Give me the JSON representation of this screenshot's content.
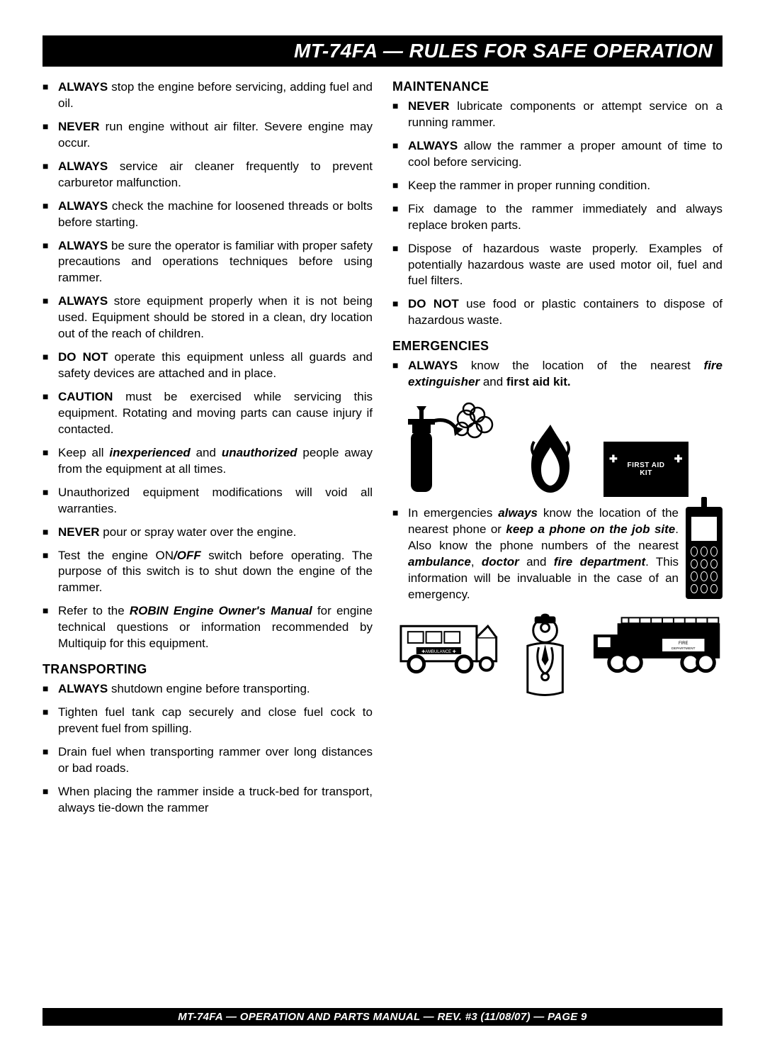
{
  "title": "MT-74FA — RULES FOR SAFE OPERATION",
  "footer": "MT-74FA — OPERATION AND PARTS MANUAL — REV. #3 (11/08/07) — PAGE 9",
  "left": {
    "items": [
      [
        {
          "t": "ALWAYS",
          "c": "b"
        },
        {
          "t": " stop the engine before servicing, adding fuel and oil."
        }
      ],
      [
        {
          "t": "NEVER",
          "c": "b"
        },
        {
          "t": "  run engine without air filter.  Severe engine may occur."
        }
      ],
      [
        {
          "t": "ALWAYS",
          "c": "b"
        },
        {
          "t": " service air cleaner frequently to prevent carburetor malfunction."
        }
      ],
      [
        {
          "t": "ALWAYS",
          "c": "b"
        },
        {
          "t": " check the machine for loosened threads or bolts before starting."
        }
      ],
      [
        {
          "t": "ALWAYS",
          "c": "b"
        },
        {
          "t": " be sure the operator is familiar with proper safety precautions and operations techniques before using rammer."
        }
      ],
      [
        {
          "t": "ALWAYS",
          "c": "b"
        },
        {
          "t": " store equipment properly when it is not being used. Equipment should be stored in a clean, dry location out of the reach of children."
        }
      ],
      [
        {
          "t": "DO NOT",
          "c": "b"
        },
        {
          "t": " operate this equipment unless all guards and safety devices are attached and in place."
        }
      ],
      [
        {
          "t": "CAUTION",
          "c": "b"
        },
        {
          "t": " must be exercised while servicing this equipment. Rotating and moving parts can cause injury if contacted."
        }
      ],
      [
        {
          "t": "Keep all "
        },
        {
          "t": "inexperienced",
          "c": "bi"
        },
        {
          "t": " and "
        },
        {
          "t": "unauthorized",
          "c": "bi"
        },
        {
          "t": " people away from the equipment at all times."
        }
      ],
      [
        {
          "t": "Unauthorized equipment modifications will void all warranties."
        }
      ],
      [
        {
          "t": "NEVER",
          "c": "b"
        },
        {
          "t": " pour or spray water over the engine."
        }
      ],
      [
        {
          "t": "Test the engine ON"
        },
        {
          "t": "/OFF",
          "c": "bi"
        },
        {
          "t": " switch before operating. The purpose of this switch is to shut down the engine of the rammer."
        }
      ],
      [
        {
          "t": "Refer to the "
        },
        {
          "t": "ROBIN Engine Owner's Manual",
          "c": "bi"
        },
        {
          "t": " for engine technical questions or information recommended by Multiquip for this equipment."
        }
      ]
    ],
    "transporting_head": "TRANSPORTING",
    "transporting": [
      [
        {
          "t": "ALWAYS",
          "c": "b"
        },
        {
          "t": " shutdown engine before transporting."
        }
      ],
      [
        {
          "t": "Tighten fuel tank cap securely and close fuel cock to prevent fuel from spilling."
        }
      ],
      [
        {
          "t": "Drain fuel when transporting rammer over long distances or bad roads."
        }
      ],
      [
        {
          "t": "When  placing the rammer inside a truck-bed for transport, always tie-down the rammer"
        }
      ]
    ]
  },
  "right": {
    "maintenance_head": "MAINTENANCE",
    "maintenance": [
      [
        {
          "t": "NEVER",
          "c": "b"
        },
        {
          "t": " lubricate components or attempt service on a running rammer."
        }
      ],
      [
        {
          "t": "ALWAYS",
          "c": "b"
        },
        {
          "t": "  allow the rammer a proper amount of time to cool before servicing."
        }
      ],
      [
        {
          "t": "Keep the rammer in proper running condition."
        }
      ],
      [
        {
          "t": "Fix damage to the rammer immediately and always replace broken parts."
        }
      ],
      [
        {
          "t": "Dispose of hazardous waste properly. Examples of potentially hazardous waste are used motor oil, fuel and fuel filters."
        }
      ],
      [
        {
          "t": "DO NOT",
          "c": "b"
        },
        {
          "t": " use food or plastic containers to dispose of hazardous waste."
        }
      ]
    ],
    "emergencies_head": "EMERGENCIES",
    "emergencies1": [
      [
        {
          "t": "ALWAYS",
          "c": "b"
        },
        {
          "t": "  know the location of the nearest "
        },
        {
          "t": "fire extinguisher",
          "c": "bi"
        },
        {
          "t": " and "
        },
        {
          "t": "first aid kit.",
          "c": "b"
        }
      ]
    ],
    "first_aid_label1": "FIRST AID",
    "first_aid_label2": "KIT",
    "emergencies2": [
      [
        {
          "t": "In emergencies "
        },
        {
          "t": "always",
          "c": "bi"
        },
        {
          "t": " know the location of the nearest phone or "
        },
        {
          "t": "keep a phone on the job site",
          "c": "bi"
        },
        {
          "t": ". Also know the phone numbers of the nearest "
        },
        {
          "t": "ambulance",
          "c": "bi"
        },
        {
          "t": ", "
        },
        {
          "t": "doctor",
          "c": "bi"
        },
        {
          "t": " and "
        },
        {
          "t": "fire department",
          "c": "bi"
        },
        {
          "t": ". This information will be invaluable in the case of an emergency."
        }
      ]
    ]
  }
}
